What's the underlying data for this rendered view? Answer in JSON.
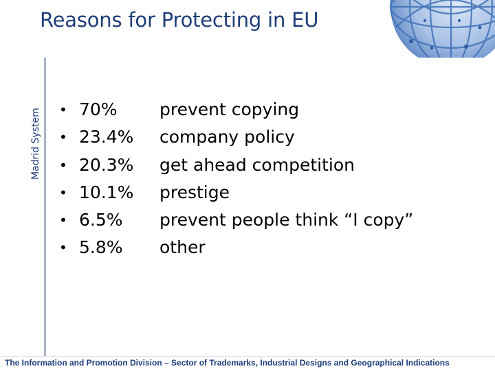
{
  "slide": {
    "title": "Reasons for Protecting in EU",
    "side_label": "Madrid System",
    "items": [
      {
        "percent": "70%",
        "reason": "prevent copying"
      },
      {
        "percent": "23.4%",
        "reason": "company policy"
      },
      {
        "percent": "20.3%",
        "reason": "get ahead competition"
      },
      {
        "percent": "10.1%",
        "reason": "prestige"
      },
      {
        "percent": "6.5%",
        "reason": "prevent people think “I copy”"
      },
      {
        "percent": "5.8%",
        "reason": "other"
      }
    ],
    "footer": "The Information and Promotion Division – Sector of Trademarks, Industrial Designs and Geographical Indications"
  },
  "colors": {
    "title": "#1f3d7a",
    "accent_globe": "#3f6fb5",
    "text": "#000000"
  },
  "icons": [
    "globe-graphic"
  ]
}
